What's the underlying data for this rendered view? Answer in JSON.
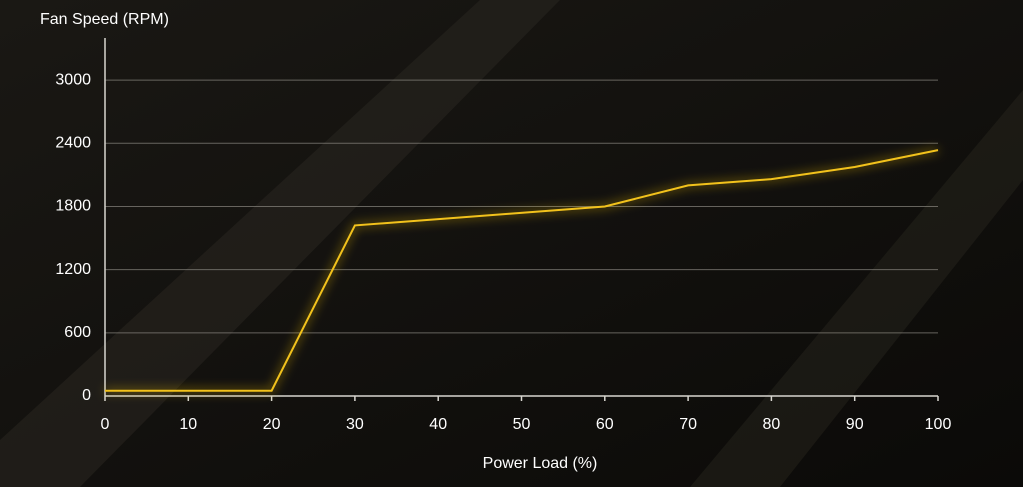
{
  "chart_data": {
    "type": "line",
    "y_label": "Fan Speed (RPM)",
    "x_label": "Power Load (%)",
    "x": [
      0,
      20,
      30,
      60,
      70,
      80,
      90,
      100
    ],
    "series": [
      {
        "name": "Fan Speed",
        "color": "#f2c21b",
        "values": [
          50,
          50,
          1620,
          1800,
          2000,
          2060,
          2175,
          2335
        ]
      }
    ],
    "xlim": [
      0,
      100
    ],
    "xticks": [
      0,
      10,
      20,
      30,
      40,
      50,
      60,
      70,
      80,
      90,
      100
    ],
    "ylim": [
      0,
      3400
    ],
    "yticks": [
      0,
      600,
      1200,
      1800,
      2400,
      3000
    ],
    "grid": true
  }
}
